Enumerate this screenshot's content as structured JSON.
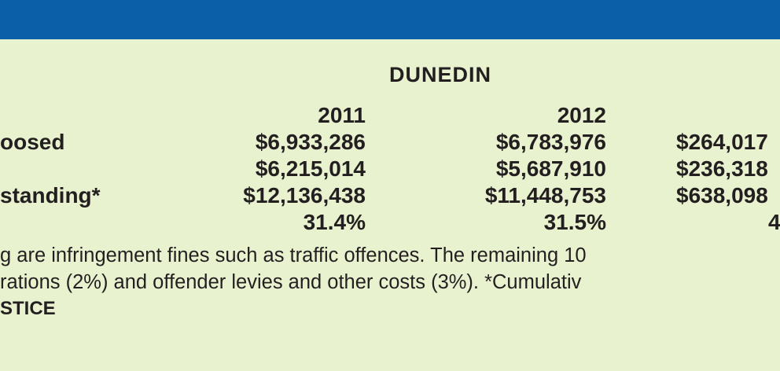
{
  "table": {
    "heading": "DUNEDIN",
    "years": [
      "2011",
      "2012"
    ],
    "rows": [
      {
        "label": "oosed",
        "y2011": "$6,933,286",
        "y2012": "$6,783,976",
        "col3": "$264,017"
      },
      {
        "label": "",
        "y2011": "$6,215,014",
        "y2012": "$5,687,910",
        "col3": "$236,318"
      },
      {
        "label": "standing*",
        "y2011": "$12,136,438",
        "y2012": "$11,448,753",
        "col3": "$638,098"
      },
      {
        "label": "",
        "y2011": "31.4%",
        "y2012": "31.5%",
        "col3": "4"
      }
    ]
  },
  "notes": {
    "line1": "g are infringement fines such as traffic offences. The remaining 10",
    "line2": "rations (2%) and offender levies and other costs (3%). *Cumulativ",
    "source": "STICE"
  },
  "colors": {
    "band": "#0b5ea8",
    "background": "#e9f2cf",
    "text": "#231f20"
  }
}
